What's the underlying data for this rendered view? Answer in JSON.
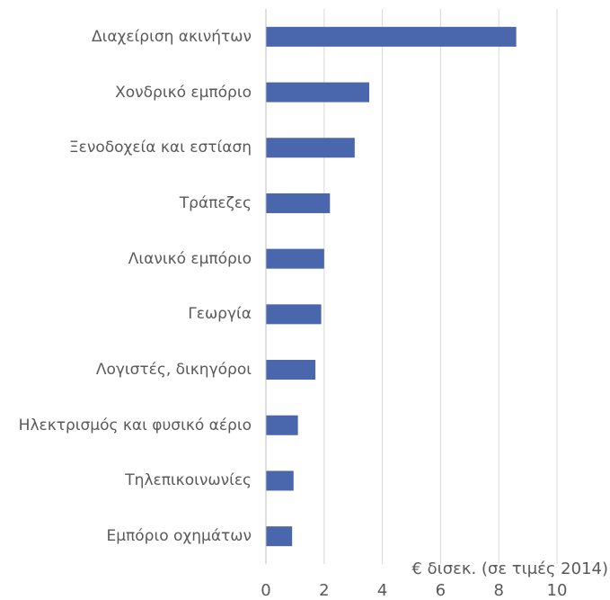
{
  "chart_data": {
    "type": "bar",
    "orientation": "horizontal",
    "categories": [
      "Διαχείριση ακινήτων",
      "Χονδρικό εμπόριο",
      "Ξενοδοχεία και εστίαση",
      "Τράπεζες",
      "Λιανικό εμπόριο",
      "Γεωργία",
      "Λογιστές, δικηγόροι",
      "Ηλεκτρισμός και φυσικό αέριο",
      "Τηλεπικοινωνίες",
      "Εμπόριο οχημάτων"
    ],
    "values": [
      8.6,
      3.55,
      3.05,
      2.2,
      2.0,
      1.9,
      1.7,
      1.1,
      0.95,
      0.9
    ],
    "color": "#4a66ac",
    "xlabel": "€ δισεκ. (σε τιμές 2014)",
    "xlim": [
      0,
      10
    ],
    "xticks": [
      0,
      2,
      4,
      6,
      8,
      10
    ],
    "grid": true
  }
}
